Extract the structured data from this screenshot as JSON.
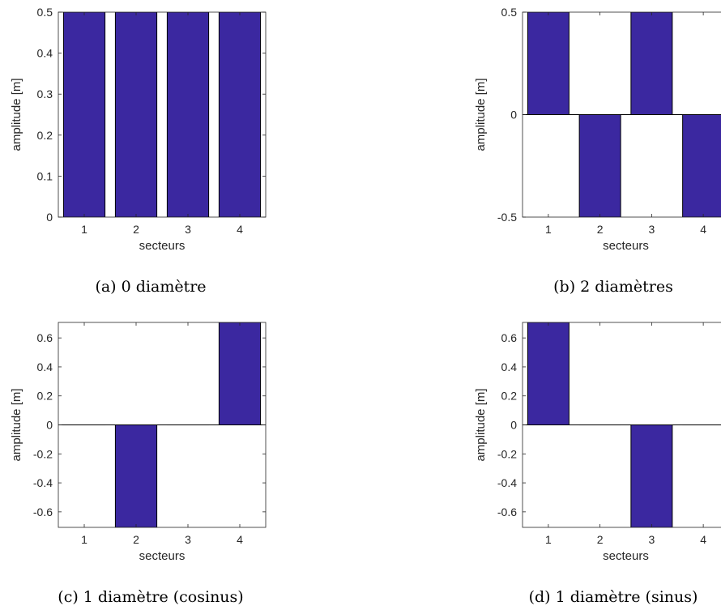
{
  "chart_data": [
    {
      "type": "bar",
      "caption": "(a) 0 diamètre",
      "categories": [
        "1",
        "2",
        "3",
        "4"
      ],
      "values": [
        0.5,
        0.5,
        0.5,
        0.5
      ],
      "xlabel": "secteurs",
      "ylabel": "amplitude [m]",
      "ylim": [
        0,
        0.5
      ],
      "yticks": [
        0,
        0.1,
        0.2,
        0.3,
        0.4,
        0.5
      ],
      "ytick_labels": [
        "0",
        "0.1",
        "0.2",
        "0.3",
        "0.4",
        "0.5"
      ],
      "bar_color": "#3b28a0"
    },
    {
      "type": "bar",
      "caption": "(b) 2 diamètres",
      "categories": [
        "1",
        "2",
        "3",
        "4"
      ],
      "values": [
        0.5,
        -0.5,
        0.5,
        -0.5
      ],
      "xlabel": "secteurs",
      "ylabel": "amplitude [m]",
      "ylim": [
        -0.5,
        0.5
      ],
      "yticks": [
        -0.5,
        0,
        0.5
      ],
      "ytick_labels": [
        "-0.5",
        "0",
        "0.5"
      ],
      "bar_color": "#3b28a0"
    },
    {
      "type": "bar",
      "caption": "(c) 1 diamètre (cosinus)",
      "categories": [
        "1",
        "2",
        "3",
        "4"
      ],
      "values": [
        0,
        -0.707,
        0,
        0.707
      ],
      "xlabel": "secteurs",
      "ylabel": "amplitude [m]",
      "ylim": [
        -0.707,
        0.707
      ],
      "yticks": [
        -0.6,
        -0.4,
        -0.2,
        0,
        0.2,
        0.4,
        0.6
      ],
      "ytick_labels": [
        "-0.6",
        "-0.4",
        "-0.2",
        "0",
        "0.2",
        "0.4",
        "0.6"
      ],
      "bar_color": "#3b28a0"
    },
    {
      "type": "bar",
      "caption": "(d) 1 diamètre (sinus)",
      "categories": [
        "1",
        "2",
        "3",
        "4"
      ],
      "values": [
        0.707,
        0,
        -0.707,
        0
      ],
      "xlabel": "secteurs",
      "ylabel": "amplitude [m]",
      "ylim": [
        -0.707,
        0.707
      ],
      "yticks": [
        -0.6,
        -0.4,
        -0.2,
        0,
        0.2,
        0.4,
        0.6
      ],
      "ytick_labels": [
        "-0.6",
        "-0.4",
        "-0.2",
        "0",
        "0.2",
        "0.4",
        "0.6"
      ],
      "bar_color": "#3b28a0"
    }
  ]
}
